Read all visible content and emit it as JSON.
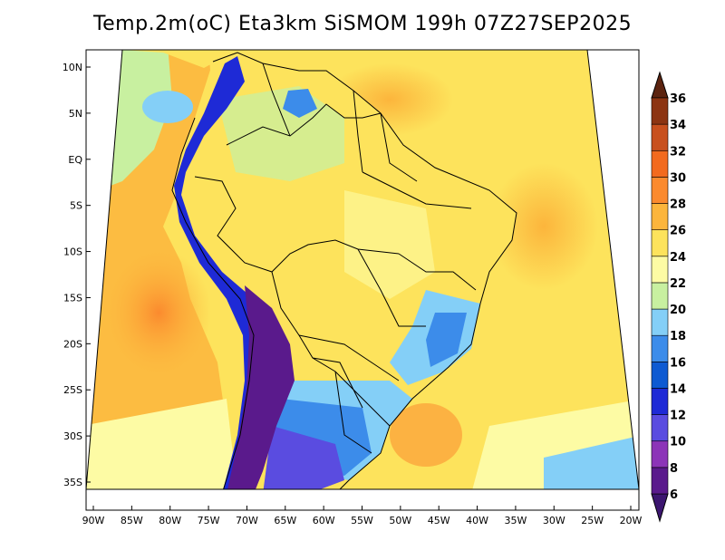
{
  "title": "Temp.2m(oC) Eta3km SiSMOM 199h 07Z27SEP2025",
  "map": {
    "lat_labels": [
      "10N",
      "5N",
      "EQ",
      "5S",
      "10S",
      "15S",
      "20S",
      "25S",
      "30S",
      "35S"
    ],
    "lat_values": [
      10,
      5,
      0,
      -5,
      -10,
      -15,
      -20,
      -25,
      -30,
      -35
    ],
    "lon_labels": [
      "90W",
      "85W",
      "80W",
      "75W",
      "70W",
      "65W",
      "60W",
      "55W",
      "50W",
      "45W",
      "40W",
      "35W",
      "30W",
      "25W",
      "20W"
    ],
    "lon_values": [
      -90,
      -85,
      -80,
      -75,
      -70,
      -65,
      -60,
      -55,
      -50,
      -45,
      -40,
      -35,
      -30,
      -25,
      -20
    ],
    "variable": "Temperature at 2 m",
    "units": "oC"
  },
  "colorbar": {
    "labels": [
      "6",
      "8",
      "10",
      "12",
      "14",
      "16",
      "18",
      "20",
      "22",
      "24",
      "26",
      "28",
      "30",
      "32",
      "34",
      "36"
    ],
    "colors": [
      "#5a1a8c",
      "#8c34b8",
      "#5a4ce0",
      "#1e2ad6",
      "#0e5ad2",
      "#3c8cea",
      "#84cff7",
      "#c8f0a0",
      "#fdfba4",
      "#fde35c",
      "#fcb53c",
      "#fb8a2e",
      "#f26a1e",
      "#c8501e",
      "#8c3412"
    ],
    "under_color": "#3c1670",
    "over_color": "#5c2410"
  }
}
